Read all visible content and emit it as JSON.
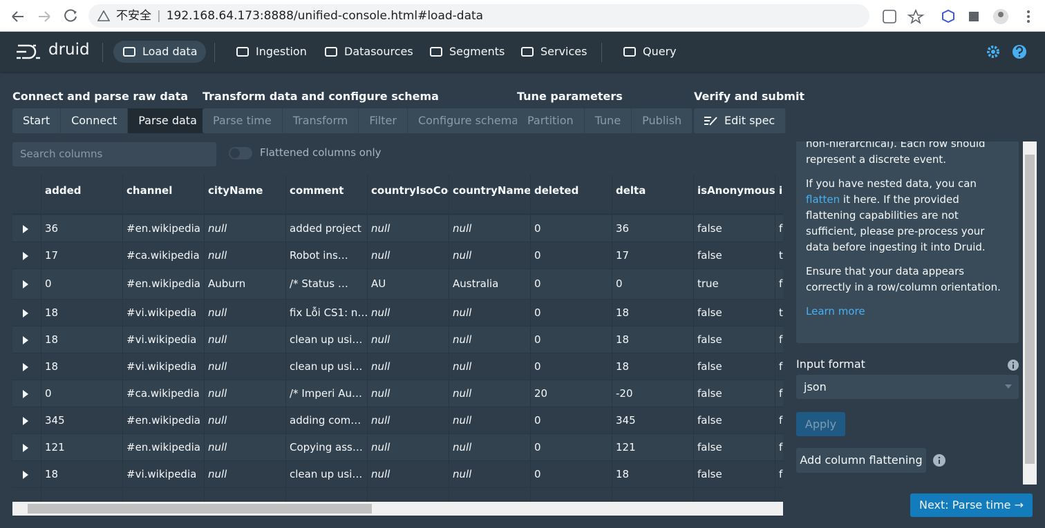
{
  "browser": {
    "security": "不安全",
    "url": "192.168.64.173:8888/unified-console.html#load-data"
  },
  "nav": {
    "brand": "druid",
    "items": [
      "Load data",
      "Ingestion",
      "Datasources",
      "Segments",
      "Services",
      "Query"
    ]
  },
  "steps": [
    {
      "title": "Connect and parse raw data",
      "items": [
        "Start",
        "Connect",
        "Parse data"
      ]
    },
    {
      "title": "Transform data and configure schema",
      "items": [
        "Parse time",
        "Transform",
        "Filter",
        "Configure schema"
      ]
    },
    {
      "title": "Tune parameters",
      "items": [
        "Partition",
        "Tune",
        "Publish"
      ]
    },
    {
      "title": "Verify and submit",
      "items": [
        "Edit spec"
      ]
    }
  ],
  "search": {
    "placeholder": "Search columns",
    "toggle": "Flattened columns only"
  },
  "table": {
    "columns": [
      "added",
      "channel",
      "cityName",
      "comment",
      "countryIsoCode",
      "countryName",
      "deleted",
      "delta",
      "isAnonymous",
      "is"
    ],
    "rows": [
      [
        36,
        "#en.wikipedia",
        "null",
        "added project",
        "null",
        "null",
        0,
        36,
        "false",
        "f"
      ],
      [
        17,
        "#ca.wikipedia",
        "null",
        "Robot ins…",
        "null",
        "null",
        0,
        17,
        "false",
        "t"
      ],
      [
        0,
        "#en.wikipedia",
        "Auburn",
        "/* Status …",
        "AU",
        "Australia",
        0,
        0,
        "true",
        "f"
      ],
      [
        18,
        "#vi.wikipedia",
        "null",
        "fix Lỗi CS1: n…",
        "null",
        "null",
        0,
        18,
        "false",
        "t"
      ],
      [
        18,
        "#vi.wikipedia",
        "null",
        "clean up usi…",
        "null",
        "null",
        0,
        18,
        "false",
        "f"
      ],
      [
        18,
        "#vi.wikipedia",
        "null",
        "clean up usi…",
        "null",
        "null",
        0,
        18,
        "false",
        "f"
      ],
      [
        0,
        "#ca.wikipedia",
        "null",
        "/* Imperi Au…",
        "null",
        "null",
        20,
        -20,
        "false",
        "f"
      ],
      [
        345,
        "#en.wikipedia",
        "null",
        "adding com…",
        "null",
        "null",
        0,
        345,
        "false",
        "f"
      ],
      [
        121,
        "#en.wikipedia",
        "null",
        "Copying ass…",
        "null",
        "null",
        0,
        121,
        "false",
        "f"
      ],
      [
        18,
        "#vi.wikipedia",
        "null",
        "clean up usi…",
        "null",
        "null",
        0,
        18,
        "false",
        "f"
      ]
    ]
  },
  "panel": {
    "intro": "non-hierarchical). Each row should represent a discrete event.",
    "nested_before": "If you have nested data, you can",
    "nested_link": "flatten",
    "nested_after": "it here. If the provided flattening capabilities are not sufficient, please pre-process your data before ingesting it into Druid.",
    "ensure": "Ensure that your data appears correctly in a row/column orientation.",
    "learn_more": "Learn more",
    "input_format_label": "Input format",
    "input_format": "json",
    "apply": "Apply",
    "add_flattening": "Add column flattening"
  },
  "next": "Next: Parse time →"
}
